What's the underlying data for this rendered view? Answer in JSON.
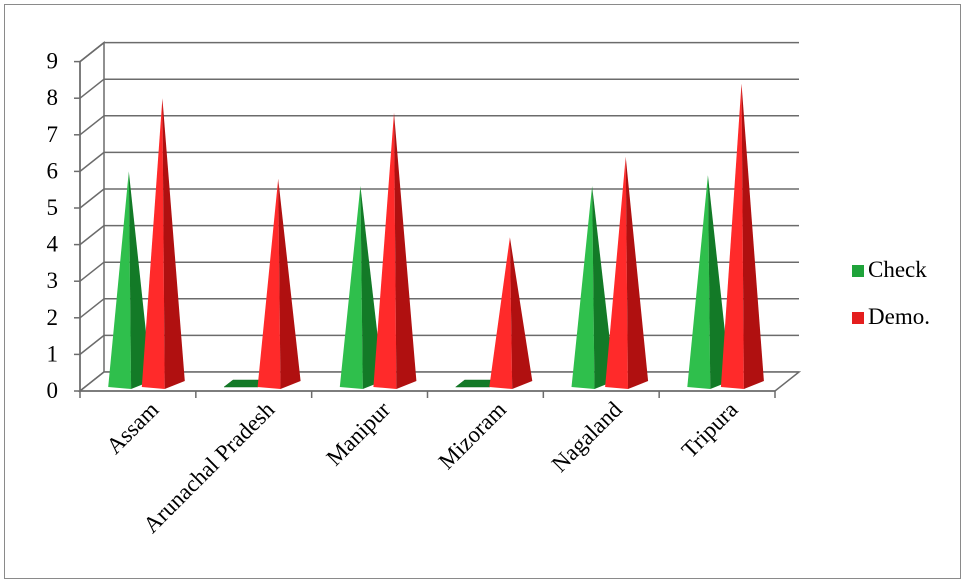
{
  "chart_data": {
    "type": "bar",
    "shape": "3d-pyramid",
    "categories": [
      "Assam",
      "Arunachal Pradesh",
      "Manipur",
      "Mizoram",
      "Nagaland",
      "Tripura"
    ],
    "series": [
      {
        "name": "Check",
        "values": [
          6,
          0,
          5.6,
          0,
          5.6,
          5.9
        ],
        "color": "#1fa33a"
      },
      {
        "name": "Demo.",
        "values": [
          8,
          5.8,
          7.6,
          4.2,
          6.4,
          8.4
        ],
        "color": "#e41e1e"
      }
    ],
    "yticks": [
      "0",
      "1",
      "2",
      "3",
      "4",
      "5",
      "6",
      "7",
      "8",
      "9"
    ],
    "ylim": [
      0,
      9
    ],
    "grid": true,
    "legend_position": "right"
  }
}
